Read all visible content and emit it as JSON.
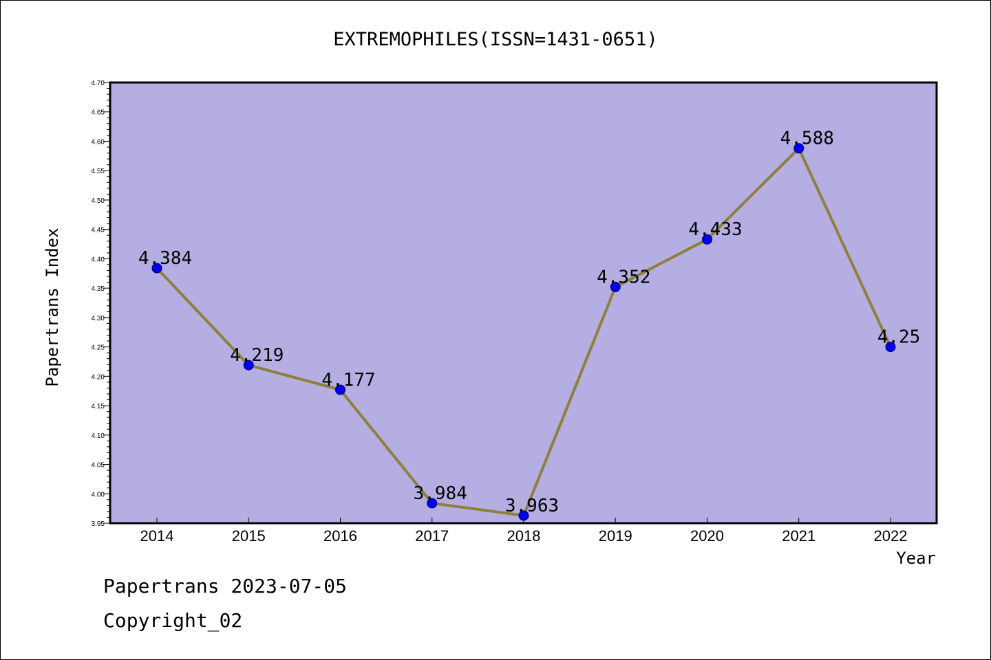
{
  "chart_data": {
    "type": "line",
    "title": "EXTREMOPHILES(ISSN=1431-0651)",
    "xlabel": "Year",
    "ylabel": "Papertrans Index",
    "categories": [
      "2014",
      "2015",
      "2016",
      "2017",
      "2018",
      "2019",
      "2020",
      "2021",
      "2022"
    ],
    "values": [
      4.384,
      4.219,
      4.177,
      3.984,
      3.963,
      4.352,
      4.433,
      4.588,
      4.25
    ],
    "data_labels": [
      "4.384",
      "4.219",
      "4.177",
      "3.984",
      "3.963",
      "4.352",
      "4.433",
      "4.588",
      "4.25"
    ],
    "ylim": [
      3.95,
      4.7
    ],
    "y_ticks": [
      "3.95",
      "4.00",
      "4.05",
      "4.10",
      "4.15",
      "4.20",
      "4.25",
      "4.30",
      "4.35",
      "4.40",
      "4.45",
      "4.50",
      "4.55",
      "4.60",
      "4.65",
      "4.70"
    ],
    "y_minor_step": 0.01,
    "grid": false,
    "legend": "none",
    "colors": {
      "plot_background": "#b4aee2",
      "line": "#8f7f3c",
      "marker_fill": "#0000ee",
      "marker_stroke": "#000066",
      "axis": "#000000"
    }
  },
  "footer": {
    "date_line": "Papertrans 2023-07-05",
    "copyright_line": "Copyright_02"
  }
}
